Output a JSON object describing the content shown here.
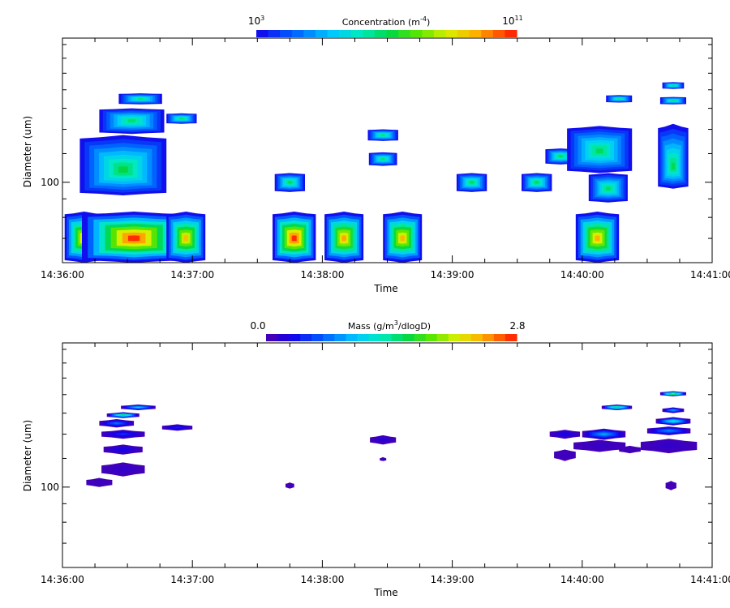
{
  "chart_data": [
    {
      "type": "heatmap",
      "colorbar": {
        "title": "Concentration (m",
        "title_exponent": "-4",
        "title_close": ")",
        "min_base": "10",
        "min_exp": "3",
        "max_base": "10",
        "max_exp": "11",
        "min": 3,
        "max": 11,
        "scale": "log10"
      },
      "xlabel": "Time",
      "ylabel": "Diameter (um)",
      "x_ticks": [
        "14:36:00",
        "14:37:00",
        "14:38:00",
        "14:39:00",
        "14:40:00",
        "14:41:00"
      ],
      "xlim": [
        "14:36:00",
        "14:41:00"
      ],
      "y_tick_labels": [
        {
          "value": 100,
          "label": "100"
        }
      ],
      "yscale": "log",
      "ylim": [
        60,
        250
      ],
      "grid": false,
      "blobs": [
        {
          "t": "14:36:10",
          "d": 70,
          "dt": 18,
          "dd_top": 83,
          "dd_bottom": 60,
          "level": 9.6
        },
        {
          "t": "14:36:33",
          "d": 70,
          "dt": 48,
          "dd_top": 83,
          "dd_bottom": 60,
          "level": 10.8
        },
        {
          "t": "14:36:57",
          "d": 70,
          "dt": 18,
          "dd_top": 83,
          "dd_bottom": 60,
          "level": 9.5
        },
        {
          "t": "14:37:47",
          "d": 70,
          "dt": 20,
          "dd_top": 83,
          "dd_bottom": 60,
          "level": 10.8
        },
        {
          "t": "14:38:10",
          "d": 70,
          "dt": 18,
          "dd_top": 83,
          "dd_bottom": 60,
          "level": 9.8
        },
        {
          "t": "14:38:37",
          "d": 70,
          "dt": 18,
          "dd_top": 83,
          "dd_bottom": 60,
          "level": 9.6
        },
        {
          "t": "14:40:07",
          "d": 70,
          "dt": 20,
          "dd_top": 83,
          "dd_bottom": 60,
          "level": 9.7
        },
        {
          "t": "14:36:28",
          "d": 108,
          "dt": 40,
          "dd_top": 135,
          "dd_bottom": 92,
          "level": 7.1
        },
        {
          "t": "14:36:32",
          "d": 148,
          "dt": 30,
          "dd_top": 160,
          "dd_bottom": 136,
          "level": 6.8
        },
        {
          "t": "14:36:36",
          "d": 170,
          "dt": 20,
          "dd_top": 176,
          "dd_bottom": 164,
          "level": 6.7
        },
        {
          "t": "14:36:55",
          "d": 150,
          "dt": 14,
          "dd_top": 155,
          "dd_bottom": 145,
          "level": 6.9
        },
        {
          "t": "14:37:45",
          "d": 100,
          "dt": 14,
          "dd_top": 106,
          "dd_bottom": 94,
          "level": 7.0
        },
        {
          "t": "14:38:28",
          "d": 135,
          "dt": 14,
          "dd_top": 140,
          "dd_bottom": 130,
          "level": 6.8
        },
        {
          "t": "14:38:28",
          "d": 116,
          "dt": 13,
          "dd_top": 121,
          "dd_bottom": 111,
          "level": 6.8
        },
        {
          "t": "14:39:09",
          "d": 100,
          "dt": 14,
          "dd_top": 106,
          "dd_bottom": 94,
          "level": 7.0
        },
        {
          "t": "14:39:39",
          "d": 100,
          "dt": 14,
          "dd_top": 106,
          "dd_bottom": 94,
          "level": 7.0
        },
        {
          "t": "14:39:50",
          "d": 118,
          "dt": 14,
          "dd_top": 124,
          "dd_bottom": 112,
          "level": 7.0
        },
        {
          "t": "14:40:08",
          "d": 122,
          "dt": 30,
          "dd_top": 143,
          "dd_bottom": 106,
          "level": 6.9
        },
        {
          "t": "14:40:12",
          "d": 96,
          "dt": 18,
          "dd_top": 106,
          "dd_bottom": 88,
          "level": 6.9
        },
        {
          "t": "14:40:17",
          "d": 170,
          "dt": 12,
          "dd_top": 174,
          "dd_bottom": 166,
          "level": 6.7
        },
        {
          "t": "14:40:42",
          "d": 110,
          "dt": 14,
          "dd_top": 145,
          "dd_bottom": 96,
          "level": 7.0
        },
        {
          "t": "14:40:42",
          "d": 168,
          "dt": 12,
          "dd_top": 172,
          "dd_bottom": 164,
          "level": 6.8
        },
        {
          "t": "14:40:42",
          "d": 185,
          "dt": 10,
          "dd_top": 189,
          "dd_bottom": 181,
          "level": 6.8
        }
      ]
    },
    {
      "type": "heatmap",
      "colorbar": {
        "title": "Mass (g/m",
        "title_exponent": "3",
        "title_close": "/dlogD)",
        "min_label": "0.0",
        "max_label": "2.8",
        "min": 0.0,
        "max": 2.8,
        "scale": "linear"
      },
      "xlabel": "Time",
      "ylabel": "Diameter (um)",
      "x_ticks": [
        "14:36:00",
        "14:37:00",
        "14:38:00",
        "14:39:00",
        "14:40:00",
        "14:41:00"
      ],
      "xlim": [
        "14:36:00",
        "14:41:00"
      ],
      "y_tick_labels": [
        {
          "value": 100,
          "label": "100"
        }
      ],
      "yscale": "log",
      "ylim": [
        60,
        250
      ],
      "grid": false,
      "blobs": [
        {
          "t": "14:36:17",
          "d": 103,
          "dt": 12,
          "dd_top": 106,
          "dd_bottom": 100,
          "level": 0.1
        },
        {
          "t": "14:36:28",
          "d": 112,
          "dt": 20,
          "dd_top": 117,
          "dd_bottom": 107,
          "level": 0.15
        },
        {
          "t": "14:36:28",
          "d": 127,
          "dt": 18,
          "dd_top": 131,
          "dd_bottom": 123,
          "level": 0.3
        },
        {
          "t": "14:36:28",
          "d": 140,
          "dt": 20,
          "dd_top": 144,
          "dd_bottom": 136,
          "level": 0.45
        },
        {
          "t": "14:36:25",
          "d": 150,
          "dt": 16,
          "dd_top": 154,
          "dd_bottom": 146,
          "level": 0.7
        },
        {
          "t": "14:36:28",
          "d": 158,
          "dt": 15,
          "dd_top": 161,
          "dd_bottom": 155,
          "level": 1.6
        },
        {
          "t": "14:36:35",
          "d": 166,
          "dt": 16,
          "dd_top": 169,
          "dd_bottom": 163,
          "level": 1.1
        },
        {
          "t": "14:36:53",
          "d": 146,
          "dt": 14,
          "dd_top": 149,
          "dd_bottom": 143,
          "level": 0.4
        },
        {
          "t": "14:37:45",
          "d": 101,
          "dt": 4,
          "dd_top": 103,
          "dd_bottom": 99,
          "level": 0.05
        },
        {
          "t": "14:38:28",
          "d": 135,
          "dt": 12,
          "dd_top": 139,
          "dd_bottom": 131,
          "level": 0.2
        },
        {
          "t": "14:38:28",
          "d": 119,
          "dt": 3,
          "dd_top": 121,
          "dd_bottom": 118,
          "level": 0.1
        },
        {
          "t": "14:39:52",
          "d": 140,
          "dt": 14,
          "dd_top": 144,
          "dd_bottom": 136,
          "level": 0.3
        },
        {
          "t": "14:39:52",
          "d": 123,
          "dt": 10,
          "dd_top": 127,
          "dd_bottom": 118,
          "level": 0.1
        },
        {
          "t": "14:40:08",
          "d": 130,
          "dt": 24,
          "dd_top": 135,
          "dd_bottom": 125,
          "level": 0.12
        },
        {
          "t": "14:40:10",
          "d": 140,
          "dt": 20,
          "dd_top": 145,
          "dd_bottom": 135,
          "level": 0.9
        },
        {
          "t": "14:40:22",
          "d": 127,
          "dt": 10,
          "dd_top": 130,
          "dd_bottom": 124,
          "level": 0.08
        },
        {
          "t": "14:40:16",
          "d": 166,
          "dt": 14,
          "dd_top": 169,
          "dd_bottom": 163,
          "level": 1.7
        },
        {
          "t": "14:40:40",
          "d": 130,
          "dt": 26,
          "dd_top": 136,
          "dd_bottom": 124,
          "level": 0.15
        },
        {
          "t": "14:40:40",
          "d": 143,
          "dt": 20,
          "dd_top": 147,
          "dd_bottom": 139,
          "level": 0.8
        },
        {
          "t": "14:40:42",
          "d": 152,
          "dt": 16,
          "dd_top": 156,
          "dd_bottom": 148,
          "level": 1.3
        },
        {
          "t": "14:40:42",
          "d": 163,
          "dt": 10,
          "dd_top": 166,
          "dd_bottom": 160,
          "level": 0.9
        },
        {
          "t": "14:40:42",
          "d": 181,
          "dt": 12,
          "dd_top": 184,
          "dd_bottom": 178,
          "level": 2.0
        },
        {
          "t": "14:40:41",
          "d": 101,
          "dt": 5,
          "dd_top": 104,
          "dd_bottom": 98,
          "level": 0.05
        }
      ]
    }
  ]
}
